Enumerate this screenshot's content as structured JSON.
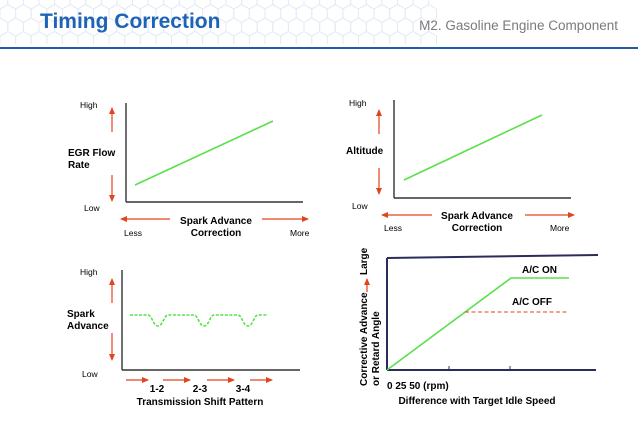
{
  "header": {
    "title": "Timing Correction",
    "subtitle": "M2. Gasoline Engine Component"
  },
  "colors": {
    "title": "#1e63b5",
    "green_line": "#59e04a",
    "red_arrow": "#e4431f",
    "axis": "#333333",
    "dark_border": "#2c2c5c"
  },
  "graph1": {
    "ylabel_line1": "EGR Flow",
    "ylabel_line2": "Rate",
    "y_high": "High",
    "y_low": "Low",
    "xlabel_line1": "Spark Advance",
    "xlabel_line2": "Correction",
    "x_less": "Less",
    "x_more": "More"
  },
  "graph2": {
    "ylabel": "Altitude",
    "y_high": "High",
    "y_low": "Low",
    "xlabel_line1": "Spark Advance",
    "xlabel_line2": "Correction",
    "x_less": "Less",
    "x_more": "More"
  },
  "graph3": {
    "ylabel_line1": "Spark",
    "ylabel_line2": "Advance",
    "y_high": "High",
    "y_low": "Low",
    "shifts": [
      "1-2",
      "2-3",
      "3-4"
    ],
    "xlabel": "Transmission Shift Pattern"
  },
  "graph4": {
    "ylabel_line1": "Corrective Advance",
    "ylabel_line2": "or Retard Angle",
    "y_large": "Large",
    "series_on": "A/C ON",
    "series_off": "A/C OFF",
    "x_ticks": "0 25 50 (rpm)",
    "xlabel": "Difference with Target Idle Speed"
  }
}
